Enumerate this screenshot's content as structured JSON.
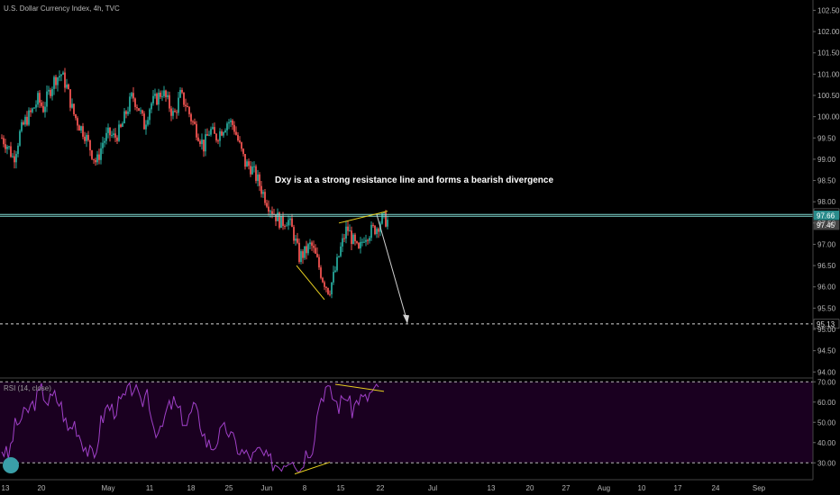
{
  "header": {
    "symbol_title": "U.S. Dollar Currency Index, 4h, TVC"
  },
  "annotation": {
    "text": "Dxy is at a strong resistance line and forms a bearish divergence"
  },
  "rsi": {
    "label": "RSI (14, close)"
  },
  "colors": {
    "background": "#000000",
    "candle_up": "#26a69a",
    "candle_down": "#ef5350",
    "resistance_line": "#7fd8d0",
    "target_line": "#d8d8d8",
    "trend_lines": "#e8d020",
    "arrow": "#d0d0d0",
    "rsi_line": "#a040c8",
    "rsi_fill": "#1a0020",
    "price_tag": "#2a8c8c"
  },
  "chart_data": [
    {
      "type": "candlestick",
      "title": "U.S. Dollar Currency Index, 4h, TVC",
      "y_axis_ticks": [
        "94.00",
        "94.50",
        "95.00",
        "95.50",
        "96.00",
        "96.50",
        "97.00",
        "97.50",
        "98.00",
        "98.50",
        "99.00",
        "99.50",
        "100.00",
        "100.50",
        "101.00",
        "101.50",
        "102.00",
        "102.50"
      ],
      "ylim": [
        93.9,
        102.7
      ],
      "x_axis_ticks": [
        "13",
        "20",
        "May",
        "11",
        "18",
        "25",
        "Jun",
        "8",
        "15",
        "22",
        "Jul",
        "13",
        "20",
        "27",
        "Aug",
        "10",
        "17",
        "24",
        "Sep"
      ],
      "price_labels": {
        "resistance": "97.71",
        "current": "97.66",
        "low_tag": "97.45",
        "target": "95.13"
      },
      "levels": {
        "resistance": 97.68,
        "target": 95.13
      },
      "close_path": [
        [
          0,
          99.5
        ],
        [
          0.7,
          99.3
        ],
        [
          1.3,
          99.0
        ],
        [
          2,
          99.6
        ],
        [
          2.6,
          99.9
        ],
        [
          3.3,
          100.1
        ],
        [
          4,
          100.4
        ],
        [
          4.6,
          100.2
        ],
        [
          5.3,
          100.6
        ],
        [
          5.9,
          100.9
        ],
        [
          6.6,
          101.0
        ],
        [
          7.2,
          100.7
        ],
        [
          7.9,
          100.1
        ],
        [
          8.6,
          99.8
        ],
        [
          9.2,
          99.6
        ],
        [
          9.9,
          99.2
        ],
        [
          10.5,
          98.9
        ],
        [
          11.2,
          99.4
        ],
        [
          11.9,
          99.6
        ],
        [
          12.5,
          99.5
        ],
        [
          13.2,
          99.7
        ],
        [
          13.8,
          100.1
        ],
        [
          14.5,
          100.5
        ],
        [
          15.2,
          100.2
        ],
        [
          15.8,
          99.8
        ],
        [
          16.5,
          100.3
        ],
        [
          17.1,
          100.4
        ],
        [
          17.8,
          100.6
        ],
        [
          18.5,
          100.3
        ],
        [
          19.1,
          100.0
        ],
        [
          19.8,
          100.5
        ],
        [
          20.4,
          100.3
        ],
        [
          21.1,
          99.9
        ],
        [
          21.8,
          99.6
        ],
        [
          22.4,
          99.3
        ],
        [
          23.1,
          99.7
        ],
        [
          23.7,
          99.5
        ],
        [
          24.4,
          99.7
        ],
        [
          25.1,
          99.9
        ],
        [
          25.7,
          99.8
        ],
        [
          26.4,
          99.3
        ],
        [
          27.0,
          98.9
        ],
        [
          27.7,
          98.8
        ],
        [
          28.4,
          98.5
        ],
        [
          29.0,
          98.2
        ],
        [
          29.7,
          97.9
        ],
        [
          30.3,
          97.7
        ],
        [
          31.0,
          97.5
        ],
        [
          31.7,
          97.6
        ],
        [
          32.3,
          97.3
        ],
        [
          33.0,
          96.7
        ],
        [
          33.6,
          96.8
        ],
        [
          34.3,
          97.0
        ],
        [
          35.0,
          96.6
        ],
        [
          35.6,
          96.2
        ],
        [
          36.3,
          95.9
        ],
        [
          36.9,
          96.3
        ],
        [
          37.6,
          96.9
        ],
        [
          38.3,
          97.4
        ],
        [
          38.9,
          97.1
        ],
        [
          39.6,
          96.8
        ],
        [
          40.2,
          97.2
        ],
        [
          40.9,
          97.3
        ],
        [
          41.6,
          97.4
        ],
        [
          42.2,
          97.6
        ],
        [
          42.8,
          97.55
        ]
      ]
    },
    {
      "type": "line",
      "title": "RSI (14, close)",
      "y_axis_ticks": [
        "30.00",
        "40.00",
        "50.00",
        "60.00",
        "70.00"
      ],
      "ylim": [
        23,
        71
      ],
      "series": [
        {
          "values": [
            37,
            33,
            48,
            52,
            56,
            60,
            66,
            60,
            63,
            58,
            46,
            50,
            42,
            36,
            32,
            50,
            58,
            56,
            60,
            64,
            68,
            58,
            66,
            48,
            44,
            56,
            60,
            54,
            49,
            58,
            50,
            40,
            38,
            44,
            47,
            41,
            36,
            34,
            33,
            36,
            32,
            30,
            29,
            31,
            34,
            26,
            35,
            38,
            60,
            67,
            63,
            58,
            64,
            56,
            62,
            61,
            65,
            66
          ]
        }
      ],
      "levels": [
        30,
        70
      ]
    }
  ]
}
